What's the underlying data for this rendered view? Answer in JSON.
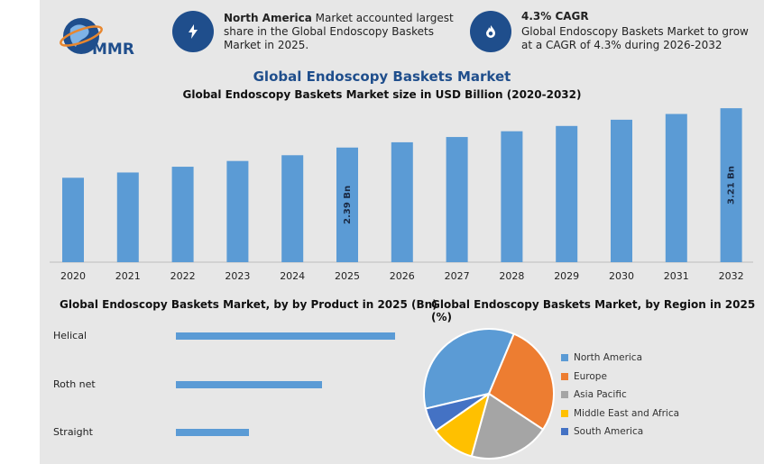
{
  "logo": {
    "text": "MMR"
  },
  "highlights": [
    {
      "icon": "lightning-icon",
      "bold": "North America",
      "text": " Market accounted largest share in the Global Endoscopy Baskets Market in 2025."
    },
    {
      "icon": "flame-icon",
      "bold": "4.3% CAGR",
      "text": "Global Endoscopy Baskets Market to grow at a CAGR of 4.3% during 2026-2032"
    }
  ],
  "header": {
    "title": "Global Endoscopy Baskets Market",
    "subtitle": "Global Endoscopy Baskets Market size in USD Billion (2020-2032)"
  },
  "colors": {
    "bar": "#5b9bd5",
    "accent": "#1f4e8c",
    "north_america": "#5b9bd5",
    "europe": "#ed7d31",
    "asia_pacific": "#a5a5a5",
    "mea": "#ffc000",
    "south_america": "#4472c4"
  },
  "chart_data": [
    {
      "type": "bar",
      "title": "Global Endoscopy Baskets Market size in USD Billion (2020-2032)",
      "categories": [
        "2020",
        "2021",
        "2022",
        "2023",
        "2024",
        "2025",
        "2026",
        "2027",
        "2028",
        "2029",
        "2030",
        "2031",
        "2032"
      ],
      "values": [
        1.76,
        1.87,
        1.99,
        2.11,
        2.23,
        2.39,
        2.5,
        2.61,
        2.73,
        2.84,
        2.97,
        3.09,
        3.21
      ],
      "data_labels": [
        {
          "category": "2025",
          "text": "2.39 Bn"
        },
        {
          "category": "2032",
          "text": "3.21 Bn"
        }
      ],
      "ylim": [
        0,
        3.4
      ],
      "grid": false
    },
    {
      "type": "bar",
      "orientation": "horizontal",
      "title": "Global Endoscopy Baskets Market, by by Product in 2025 (Bn)",
      "categories": [
        "Helical",
        "Roth net",
        "Straight"
      ],
      "values": [
        1.2,
        0.8,
        0.4
      ],
      "grid": false
    },
    {
      "type": "pie",
      "title": "Global Endoscopy Baskets Market, by Region in 2025 (%)",
      "categories": [
        "North America",
        "Europe",
        "Asia Pacific",
        "Middle East and Africa",
        "South America"
      ],
      "values": [
        35,
        28,
        20,
        11,
        6
      ],
      "legend": "right"
    }
  ]
}
